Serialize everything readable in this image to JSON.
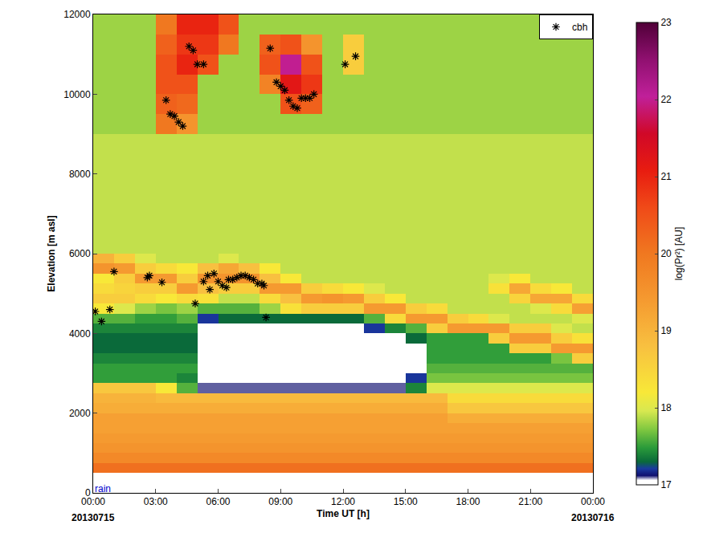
{
  "chart_data": {
    "type": "heatmap",
    "x_label": "Time UT [h]",
    "y_label": "Elevation [m asl]",
    "xlim": [
      0,
      24
    ],
    "ylim": [
      0,
      12000
    ],
    "xticks": [
      {
        "value": 0,
        "label": "00:00"
      },
      {
        "value": 3,
        "label": "03:00"
      },
      {
        "value": 6,
        "label": "06:00"
      },
      {
        "value": 9,
        "label": "09:00"
      },
      {
        "value": 12,
        "label": "12:00"
      },
      {
        "value": 15,
        "label": "15:00"
      },
      {
        "value": 18,
        "label": "18:00"
      },
      {
        "value": 21,
        "label": "21:00"
      },
      {
        "value": 24,
        "label": "00:00"
      }
    ],
    "yticks": [
      0,
      2000,
      4000,
      6000,
      8000,
      10000,
      12000
    ],
    "x_edges": [
      0,
      1,
      2,
      3,
      4,
      5,
      6,
      7,
      8,
      9,
      10,
      11,
      12,
      13,
      14,
      15,
      16,
      17,
      18,
      19,
      20,
      21,
      22,
      23,
      24
    ],
    "y_edges": [
      500,
      750,
      1000,
      1250,
      1500,
      1750,
      2000,
      2250,
      2500,
      2750,
      3000,
      3250,
      3500,
      3750,
      4000,
      4250,
      4500,
      4750,
      5000,
      5250,
      5500,
      5750,
      6000,
      6500,
      7000,
      7500,
      8000,
      8500,
      9000,
      9500,
      10000,
      10500,
      11000,
      11500,
      12000
    ],
    "z": [
      [
        20.1,
        20.1,
        20.1,
        20.1,
        20.1,
        20.1,
        20.1,
        20.1,
        20.1,
        20.1,
        20.1,
        20.1,
        20.1,
        20.1,
        20.1,
        20.1,
        20.1,
        20.1,
        20.1,
        20.1,
        20.1,
        20.1,
        20.1,
        20.1
      ],
      [
        19.7,
        19.7,
        19.7,
        19.7,
        19.7,
        19.7,
        19.7,
        19.7,
        19.7,
        19.7,
        19.7,
        19.7,
        19.7,
        19.7,
        19.7,
        19.7,
        19.7,
        19.7,
        19.7,
        19.7,
        19.7,
        19.7,
        19.7,
        19.7
      ],
      [
        19.5,
        19.5,
        19.5,
        19.5,
        19.5,
        19.5,
        19.5,
        19.5,
        19.5,
        19.5,
        19.5,
        19.5,
        19.5,
        19.5,
        19.5,
        19.5,
        19.5,
        19.5,
        19.5,
        19.5,
        19.5,
        19.5,
        19.5,
        19.5
      ],
      [
        19.4,
        19.4,
        19.4,
        19.4,
        19.4,
        19.4,
        19.4,
        19.4,
        19.4,
        19.4,
        19.4,
        19.4,
        19.4,
        19.4,
        19.4,
        19.4,
        19.4,
        19.4,
        19.4,
        19.4,
        19.4,
        19.4,
        19.4,
        19.4
      ],
      [
        19.3,
        19.3,
        19.3,
        19.3,
        19.3,
        19.3,
        19.3,
        19.3,
        19.3,
        19.3,
        19.3,
        19.3,
        19.3,
        19.3,
        19.3,
        19.3,
        19.3,
        19.3,
        19.3,
        19.3,
        19.3,
        19.3,
        19.3,
        19.3
      ],
      [
        19.3,
        19.3,
        19.3,
        19.3,
        19.3,
        19.3,
        19.3,
        19.3,
        19.3,
        19.3,
        19.3,
        19.3,
        19.3,
        19.3,
        19.3,
        19.3,
        19.3,
        19.1,
        19.1,
        19.1,
        19.1,
        19.1,
        19.1,
        19.1
      ],
      [
        19.1,
        19.1,
        19.1,
        19.1,
        19.1,
        19.1,
        19.1,
        19.1,
        19.1,
        19.1,
        19.1,
        19.1,
        19.1,
        19.1,
        19.1,
        19.1,
        19.1,
        18.7,
        18.7,
        18.7,
        18.7,
        18.7,
        18.7,
        18.7
      ],
      [
        19.0,
        19.0,
        19.0,
        18.9,
        18.9,
        18.9,
        18.9,
        18.9,
        18.9,
        18.9,
        18.9,
        18.9,
        18.9,
        18.9,
        18.9,
        18.9,
        18.9,
        18.4,
        18.4,
        18.4,
        18.4,
        18.4,
        18.4,
        18.4
      ],
      [
        18.7,
        18.7,
        18.7,
        18.2,
        17.6,
        17.1,
        17.1,
        17.1,
        17.1,
        17.1,
        17.1,
        17.1,
        17.1,
        17.1,
        17.1,
        17.4,
        18.0,
        18.0,
        18.0,
        18.0,
        18.0,
        18.0,
        18.0,
        18.0
      ],
      [
        17.5,
        17.5,
        17.5,
        17.5,
        17.4,
        17.0,
        17.0,
        17.0,
        17.0,
        17.0,
        17.0,
        17.0,
        17.0,
        17.0,
        17.0,
        17.2,
        17.7,
        17.7,
        17.7,
        17.7,
        17.7,
        17.7,
        17.7,
        17.7
      ],
      [
        17.5,
        17.5,
        17.5,
        17.5,
        17.5,
        17.0,
        17.0,
        17.0,
        17.0,
        17.0,
        17.0,
        17.0,
        17.0,
        17.0,
        17.0,
        17.0,
        17.6,
        17.6,
        17.6,
        17.6,
        17.6,
        17.6,
        17.6,
        17.6
      ],
      [
        17.4,
        17.4,
        17.4,
        17.4,
        17.4,
        17.0,
        17.0,
        17.0,
        17.0,
        17.0,
        17.0,
        17.0,
        17.0,
        17.0,
        17.0,
        17.0,
        17.5,
        17.5,
        17.5,
        17.5,
        17.5,
        17.5,
        17.7,
        18.6
      ],
      [
        17.3,
        17.3,
        17.3,
        17.3,
        17.3,
        17.0,
        17.0,
        17.0,
        17.0,
        17.0,
        17.0,
        17.0,
        17.0,
        17.0,
        17.0,
        17.0,
        17.5,
        17.5,
        17.5,
        17.5,
        18.6,
        18.6,
        19.4,
        19.4
      ],
      [
        17.3,
        17.3,
        17.3,
        17.3,
        17.3,
        17.0,
        17.0,
        17.0,
        17.0,
        17.0,
        17.0,
        17.0,
        17.0,
        17.0,
        17.0,
        17.3,
        17.5,
        17.5,
        17.5,
        18.6,
        19.4,
        19.4,
        18.6,
        18.3
      ],
      [
        17.4,
        17.4,
        17.4,
        17.4,
        17.4,
        17.0,
        17.0,
        17.0,
        17.0,
        17.0,
        17.0,
        17.0,
        17.0,
        17.2,
        17.4,
        17.6,
        18.6,
        19.4,
        19.4,
        19.4,
        18.6,
        18.6,
        18.0,
        17.9
      ],
      [
        17.6,
        17.6,
        17.5,
        17.5,
        17.6,
        17.2,
        17.3,
        17.3,
        17.3,
        17.3,
        17.3,
        17.3,
        17.3,
        17.6,
        18.4,
        19.4,
        19.4,
        18.6,
        18.4,
        18.0,
        17.9,
        17.9,
        17.9,
        18.0
      ],
      [
        18.2,
        18.0,
        17.8,
        17.7,
        17.8,
        17.6,
        17.6,
        17.6,
        17.8,
        18.3,
        18.6,
        18.6,
        18.6,
        19.4,
        19.4,
        18.6,
        18.4,
        17.9,
        17.9,
        17.9,
        17.9,
        18.0,
        18.4,
        19.3
      ],
      [
        18.6,
        18.6,
        18.4,
        18.2,
        18.4,
        18.3,
        17.9,
        17.9,
        18.4,
        18.8,
        19.4,
        19.5,
        19.4,
        18.6,
        18.2,
        17.9,
        17.9,
        17.9,
        17.9,
        17.9,
        18.5,
        19.2,
        19.2,
        18.4
      ],
      [
        18.4,
        18.5,
        18.6,
        18.6,
        19.4,
        18.8,
        18.6,
        18.6,
        19.4,
        19.4,
        18.6,
        18.4,
        18.2,
        18.0,
        17.9,
        17.9,
        17.9,
        17.9,
        17.9,
        18.3,
        19.2,
        18.4,
        18.2,
        17.9
      ],
      [
        18.2,
        18.6,
        19.4,
        19.4,
        18.6,
        19.5,
        19.5,
        19.5,
        18.8,
        18.2,
        17.9,
        17.9,
        17.9,
        17.9,
        17.9,
        17.9,
        17.9,
        17.9,
        17.9,
        18.0,
        18.2,
        17.9,
        17.9,
        17.9
      ],
      [
        19.5,
        19.4,
        18.6,
        18.4,
        18.2,
        18.8,
        19.2,
        18.8,
        18.2,
        17.9,
        17.9,
        17.9,
        17.9,
        17.9,
        17.9,
        17.9,
        17.9,
        17.9,
        17.9,
        17.9,
        17.9,
        17.9,
        17.9,
        17.9
      ],
      [
        19.0,
        18.6,
        18.0,
        17.9,
        17.9,
        17.9,
        18.0,
        17.9,
        17.9,
        17.9,
        17.9,
        17.9,
        17.9,
        17.9,
        17.9,
        17.9,
        17.9,
        17.9,
        17.9,
        17.9,
        17.9,
        17.9,
        17.9,
        17.9
      ],
      [
        17.9,
        17.9,
        17.9,
        17.9,
        17.9,
        17.9,
        17.9,
        17.9,
        17.9,
        17.9,
        17.9,
        17.9,
        17.9,
        17.9,
        17.9,
        17.9,
        17.9,
        17.9,
        17.9,
        17.9,
        17.9,
        17.9,
        17.9,
        17.9
      ],
      [
        17.9,
        17.9,
        17.9,
        17.9,
        17.9,
        17.9,
        17.9,
        17.9,
        17.9,
        17.9,
        17.9,
        17.9,
        17.9,
        17.9,
        17.9,
        17.9,
        17.9,
        17.9,
        17.9,
        17.9,
        17.9,
        17.9,
        17.9,
        17.9
      ],
      [
        17.9,
        17.9,
        17.9,
        17.9,
        17.9,
        17.9,
        17.9,
        17.9,
        17.9,
        17.9,
        17.9,
        17.9,
        17.9,
        17.9,
        17.9,
        17.9,
        17.9,
        17.9,
        17.9,
        17.9,
        17.9,
        17.9,
        17.9,
        17.9
      ],
      [
        17.9,
        17.9,
        17.9,
        17.9,
        17.9,
        17.9,
        17.9,
        17.9,
        17.9,
        17.9,
        17.9,
        17.9,
        17.9,
        17.9,
        17.9,
        17.9,
        17.9,
        17.9,
        17.9,
        17.9,
        17.9,
        17.9,
        17.9,
        17.9
      ],
      [
        17.9,
        17.9,
        17.9,
        17.9,
        17.9,
        17.9,
        17.9,
        17.9,
        17.9,
        17.9,
        17.9,
        17.9,
        17.9,
        17.9,
        17.9,
        17.9,
        17.9,
        17.9,
        17.9,
        17.9,
        17.9,
        17.9,
        17.9,
        17.9
      ],
      [
        17.9,
        17.9,
        17.9,
        17.9,
        17.9,
        17.9,
        17.9,
        17.9,
        17.9,
        17.9,
        17.9,
        17.9,
        17.9,
        17.9,
        17.9,
        17.9,
        17.9,
        17.9,
        17.9,
        17.9,
        17.9,
        17.9,
        17.9,
        17.9
      ],
      [
        17.8,
        17.8,
        17.8,
        20.0,
        19.5,
        17.8,
        17.8,
        17.8,
        17.8,
        17.8,
        17.8,
        17.8,
        17.8,
        17.8,
        17.8,
        17.8,
        17.8,
        17.8,
        17.8,
        17.8,
        17.8,
        17.8,
        17.8,
        17.8
      ],
      [
        17.8,
        17.8,
        17.8,
        20.3,
        20.2,
        17.8,
        17.8,
        17.8,
        17.8,
        20.5,
        20.3,
        17.8,
        17.8,
        17.8,
        17.8,
        17.8,
        17.8,
        17.8,
        17.8,
        17.8,
        17.8,
        17.8,
        17.8,
        17.8
      ],
      [
        17.8,
        17.8,
        17.8,
        20.5,
        20.5,
        17.8,
        17.8,
        17.8,
        19.8,
        21.2,
        20.8,
        17.8,
        17.8,
        17.8,
        17.8,
        17.8,
        17.8,
        17.8,
        17.8,
        17.8,
        17.8,
        17.8,
        17.8,
        17.8
      ],
      [
        17.8,
        17.8,
        17.8,
        20.5,
        21.0,
        20.5,
        17.8,
        17.8,
        20.5,
        22.0,
        20.5,
        17.8,
        18.6,
        17.8,
        17.8,
        17.8,
        17.8,
        17.8,
        17.8,
        17.8,
        17.8,
        17.8,
        17.8,
        17.8
      ],
      [
        17.8,
        17.8,
        17.8,
        20.3,
        20.8,
        20.8,
        20.0,
        17.8,
        20.3,
        20.5,
        19.5,
        17.8,
        18.6,
        17.8,
        17.8,
        17.8,
        17.8,
        17.8,
        17.8,
        17.8,
        17.8,
        17.8,
        17.8,
        17.8
      ],
      [
        17.8,
        17.8,
        17.8,
        20.0,
        21.0,
        21.0,
        20.5,
        17.8,
        17.8,
        17.8,
        17.8,
        17.8,
        17.8,
        17.8,
        17.8,
        17.8,
        17.8,
        17.8,
        17.8,
        17.8,
        17.8,
        17.8,
        17.8,
        17.8
      ]
    ],
    "colorbar": {
      "title": "log(Pr²) [AU]",
      "zlim": [
        17,
        23
      ],
      "zticks": [
        17,
        18,
        19,
        20,
        21,
        22,
        23
      ]
    },
    "series": [
      {
        "name": "cbh",
        "type": "scatter",
        "marker": "asterisk",
        "color": "#000000",
        "x": [
          0.1,
          0.4,
          0.8,
          1.0,
          2.6,
          2.7,
          3.3,
          3.5,
          3.7,
          3.9,
          4.1,
          4.3,
          4.6,
          4.8,
          5.0,
          5.3,
          4.9,
          5.3,
          5.5,
          5.6,
          5.8,
          6.0,
          6.2,
          6.4,
          6.5,
          6.7,
          6.9,
          7.1,
          7.3,
          7.5,
          7.7,
          7.9,
          8.1,
          8.2,
          8.3,
          8.5,
          8.8,
          9.0,
          9.2,
          9.4,
          9.6,
          9.8,
          10.0,
          10.2,
          10.4,
          10.6,
          12.1,
          12.6
        ],
        "y": [
          4550,
          4300,
          4600,
          5550,
          5400,
          5450,
          5280,
          9850,
          9500,
          9450,
          9300,
          9200,
          11200,
          11100,
          10750,
          10750,
          4750,
          5300,
          5450,
          5100,
          5500,
          5300,
          5200,
          5150,
          5350,
          5350,
          5400,
          5450,
          5450,
          5400,
          5350,
          5250,
          5250,
          5200,
          4400,
          11150,
          10300,
          10200,
          10100,
          9850,
          9700,
          9650,
          9900,
          9900,
          9900,
          10000,
          10750,
          10950
        ]
      }
    ],
    "legend": "top right",
    "annotations": [
      {
        "text": "20130715",
        "x": 0
      },
      {
        "text": "20130716",
        "x": 24
      },
      {
        "text": "rain",
        "x": 0,
        "y": 100,
        "color": "#0000cc"
      }
    ]
  }
}
